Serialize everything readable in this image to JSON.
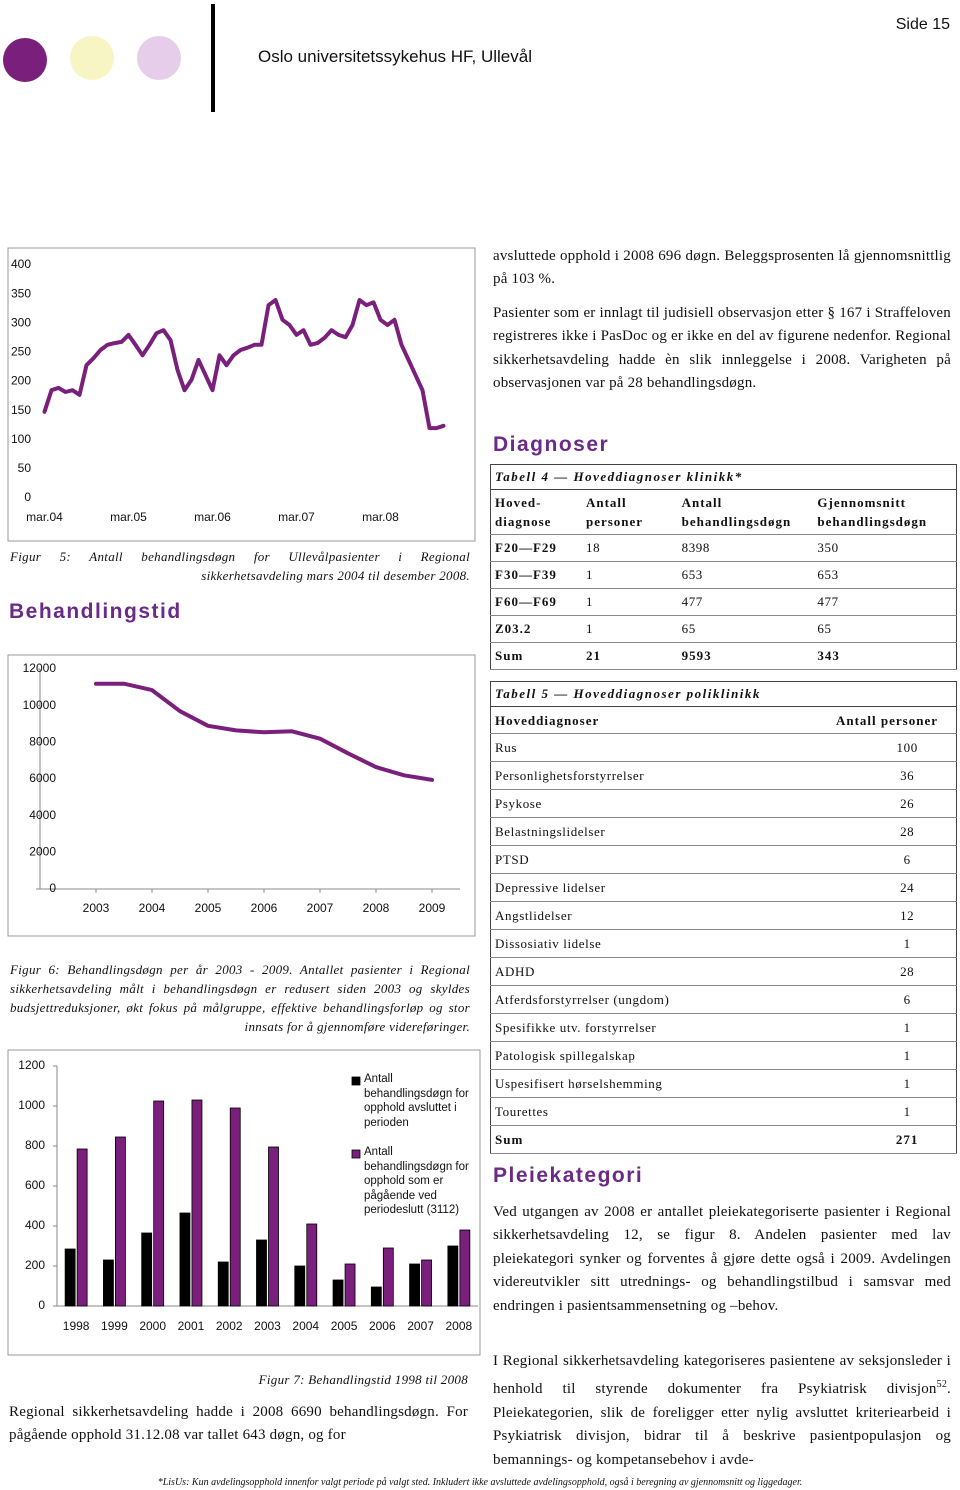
{
  "header": {
    "page": "Side 15",
    "org": "Oslo universitetssykehus HF, Ullevål"
  },
  "chart_data": [
    {
      "type": "line",
      "categories": [
        "mar.04",
        null,
        null,
        null,
        null,
        null,
        null,
        null,
        null,
        null,
        null,
        null,
        "mar.05",
        null,
        null,
        null,
        null,
        null,
        null,
        null,
        null,
        null,
        null,
        null,
        "mar.06",
        null,
        null,
        null,
        null,
        null,
        null,
        null,
        null,
        null,
        null,
        null,
        "mar.07",
        null,
        null,
        null,
        null,
        null,
        null,
        null,
        null,
        null,
        null,
        null,
        "mar.08",
        null,
        null,
        null,
        null,
        null,
        null,
        null,
        null,
        null
      ],
      "values": [
        148,
        185,
        189,
        182,
        185,
        177,
        228,
        240,
        254,
        263,
        266,
        268,
        280,
        263,
        245,
        263,
        283,
        288,
        271,
        220,
        185,
        203,
        237,
        211,
        185,
        245,
        228,
        245,
        254,
        258,
        263,
        263,
        331,
        340,
        306,
        297,
        280,
        288,
        263,
        266,
        275,
        288,
        280,
        276,
        297,
        340,
        331,
        336,
        306,
        297,
        306,
        263,
        237,
        211,
        185,
        120,
        120,
        124
      ],
      "color": "#7b1f7d",
      "ylim": [
        0,
        400
      ],
      "yticks": [
        0,
        50,
        100,
        150,
        200,
        250,
        300,
        350,
        400
      ]
    },
    {
      "type": "line",
      "x": [
        2003,
        2003.5,
        2004,
        2004.5,
        2005,
        2005.5,
        2006,
        2006.5,
        2007,
        2007.5,
        2008,
        2008.5,
        2009
      ],
      "values": [
        11200,
        11200,
        10850,
        9700,
        8900,
        8650,
        8550,
        8600,
        8200,
        7400,
        6650,
        6200,
        5950
      ],
      "color": "#7b1f7d",
      "xlim": [
        2002,
        2009.5
      ],
      "xticks": [
        2003,
        2004,
        2005,
        2006,
        2007,
        2008,
        2009
      ],
      "ylim": [
        0,
        12000
      ],
      "yticks": [
        0,
        2000,
        4000,
        6000,
        8000,
        10000,
        12000
      ]
    },
    {
      "type": "bar",
      "categories": [
        "1998",
        "1999",
        "2000",
        "2001",
        "2002",
        "2003",
        "2004",
        "2005",
        "2006",
        "2007",
        "2008"
      ],
      "series": [
        {
          "name": "Antall behandlingsdøgn for opphold avsluttet i perioden",
          "color": "#000000",
          "values": [
            285,
            230,
            365,
            465,
            220,
            330,
            200,
            130,
            95,
            210,
            300
          ]
        },
        {
          "name": "Antall behandlingsdøgn for opphold som er pågående ved periodeslutt (3112)",
          "color": "#7b1f7d",
          "values": [
            785,
            845,
            1025,
            1030,
            990,
            795,
            410,
            210,
            290,
            230,
            380
          ]
        }
      ],
      "ylim": [
        0,
        1200
      ],
      "yticks": [
        0,
        200,
        400,
        600,
        800,
        1000,
        1200
      ]
    }
  ],
  "captions": [
    "Figur 5: Antall behandlingsdøgn for Ullevålpasienter i Regional sikkerhetsavdeling mars 2004 til desember 2008.",
    "Figur 6: Behandlingsdøgn per år 2003 - 2009. Antallet pasienter i Regional sikkerhetsavdeling målt i behandlingsdøgn er redusert siden 2003 og skyldes budsjettreduksjoner, økt fokus på målgruppe, effektive behandlingsforløp og stor innsats for å gjennomføre videreføringer.",
    "Figur 7: Behandlingstid 1998 til 2008"
  ],
  "headings": {
    "behandlingstid": "Behandlingstid",
    "diagnoser": "Diagnoser",
    "pleiekategori": "Pleiekategori"
  },
  "paragraphs": {
    "left": "Regional sikkerhetsavdeling hadde i 2008 6690 behandlingsdøgn. For pågående opphold 31.12.08 var tallet 643 døgn, og for",
    "p1": "avsluttede opphold i 2008 696 døgn. Beleggsprosenten lå gjennomsnittlig på 103 %.",
    "p2": "Pasienter som er innlagt til judisiell observasjon etter § 167 i Straffeloven registreres ikke i PasDoc og er ikke en del av figurene nedenfor. Regional sikkerhetsavdeling hadde èn slik innleggelse i 2008. Varigheten på observasjonen var på 28 behandlingsdøgn.",
    "p3": "Ved utgangen av 2008 er antallet pleiekategoriserte pasienter i Regional sikkerhetsavdeling 12, se figur 8. Andelen pasienter med lav pleiekategori synker og forventes å gjøre dette også i 2009. Avdelingen videreutvikler sitt utrednings- og behandlingstilbud i samsvar med endringen i pasientsammensetning og –behov.",
    "p4": {
      "before": "I Regional sikkerhetsavdeling kategoriseres pasientene av seksjonsleder i henhold til styrende dokumenter fra Psykiatrisk divisjon",
      "note": "52",
      "after": ". Pleiekategorien, slik de foreligger etter nylig avsluttet kriteriearbeid i Psykiatrisk divisjon, bidrar til å beskrive pasientpopulasjon og bemannings- og kompetansebehov i avde-"
    }
  },
  "table4": {
    "title": "Tabell 4 — Hoveddiagnoser klinikk*",
    "columns": [
      "Hoved-diagnose",
      "Antall personer",
      "Antall behandlingsdøgn",
      "Gjennomsnitt behandlingsdøgn"
    ],
    "rows": [
      [
        "F20—F29",
        18,
        8398,
        350
      ],
      [
        "F30—F39",
        1,
        653,
        653
      ],
      [
        "F60—F69",
        1,
        477,
        477
      ],
      [
        "Z03.2",
        1,
        65,
        65
      ],
      [
        "Sum",
        21,
        9593,
        343
      ]
    ]
  },
  "table5": {
    "title": "Tabell 5 — Hoveddiagnoser poliklinikk",
    "columns": [
      "Hoveddiagnoser",
      "Antall personer"
    ],
    "rows": [
      [
        "Rus",
        100
      ],
      [
        "Personlighetsforstyrrelser",
        36
      ],
      [
        "Psykose",
        26
      ],
      [
        "Belastningslidelser",
        28
      ],
      [
        "PTSD",
        6
      ],
      [
        "Depressive lidelser",
        24
      ],
      [
        "Angstlidelser",
        12
      ],
      [
        "Dissosiativ lidelse",
        1
      ],
      [
        "ADHD",
        28
      ],
      [
        "Atferdsforstyrrelser (ungdom)",
        6
      ],
      [
        "Spesifikke utv. forstyrrelser",
        1
      ],
      [
        "Patologisk spillegalskap",
        1
      ],
      [
        "Uspesifisert hørselshemming",
        1
      ],
      [
        "Tourettes",
        1
      ],
      [
        "Sum",
        271
      ]
    ]
  },
  "footnote": "*LisUs: Kun avdelingsopphold innenfor valgt periode på valgt sted. Inkludert ikke avsluttede avdelingsopphold, også i beregning av gjennomsnitt og liggedager."
}
